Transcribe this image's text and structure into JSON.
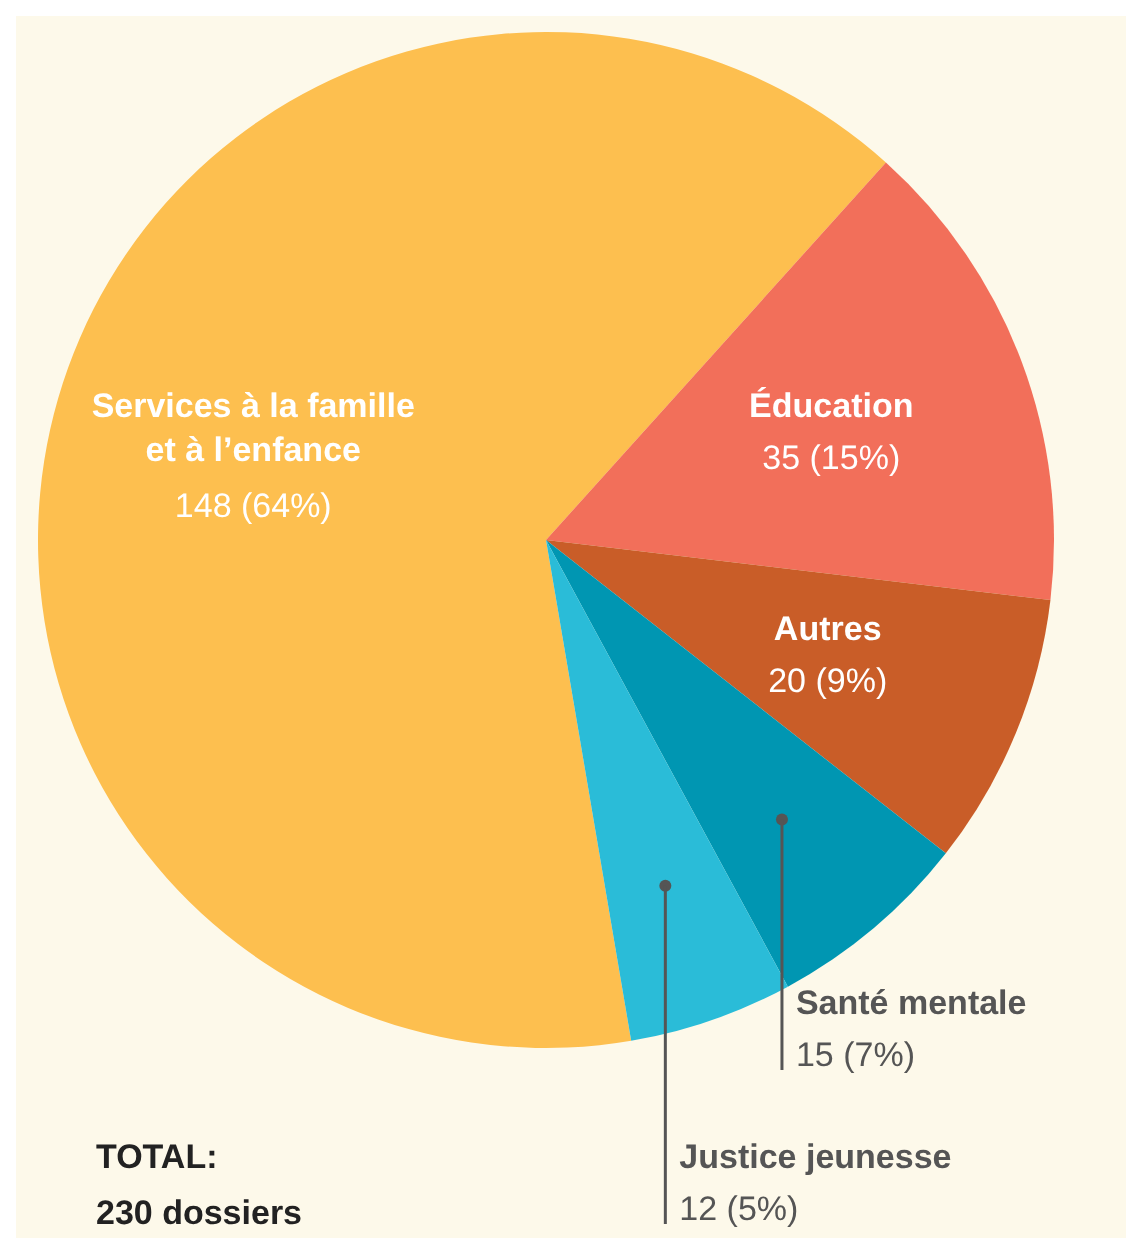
{
  "chart_data": {
    "type": "pie",
    "categories": [
      "Services à la famille et à l’enfance",
      "Éducation",
      "Autres",
      "Santé mentale",
      "Justice jeunesse"
    ],
    "values": [
      148,
      35,
      20,
      15,
      12
    ],
    "colors": [
      "#fdbf4f",
      "#f26f5a",
      "#c95d28",
      "#0096b2",
      "#2abcd8"
    ],
    "value_labels": [
      "148 (64%)",
      "35 (15%)",
      "20 (9%)",
      "15 (7%)",
      "12 (5%)"
    ],
    "annotations": [
      "TOTAL:",
      "230 dossiers"
    ],
    "legend": false
  }
}
